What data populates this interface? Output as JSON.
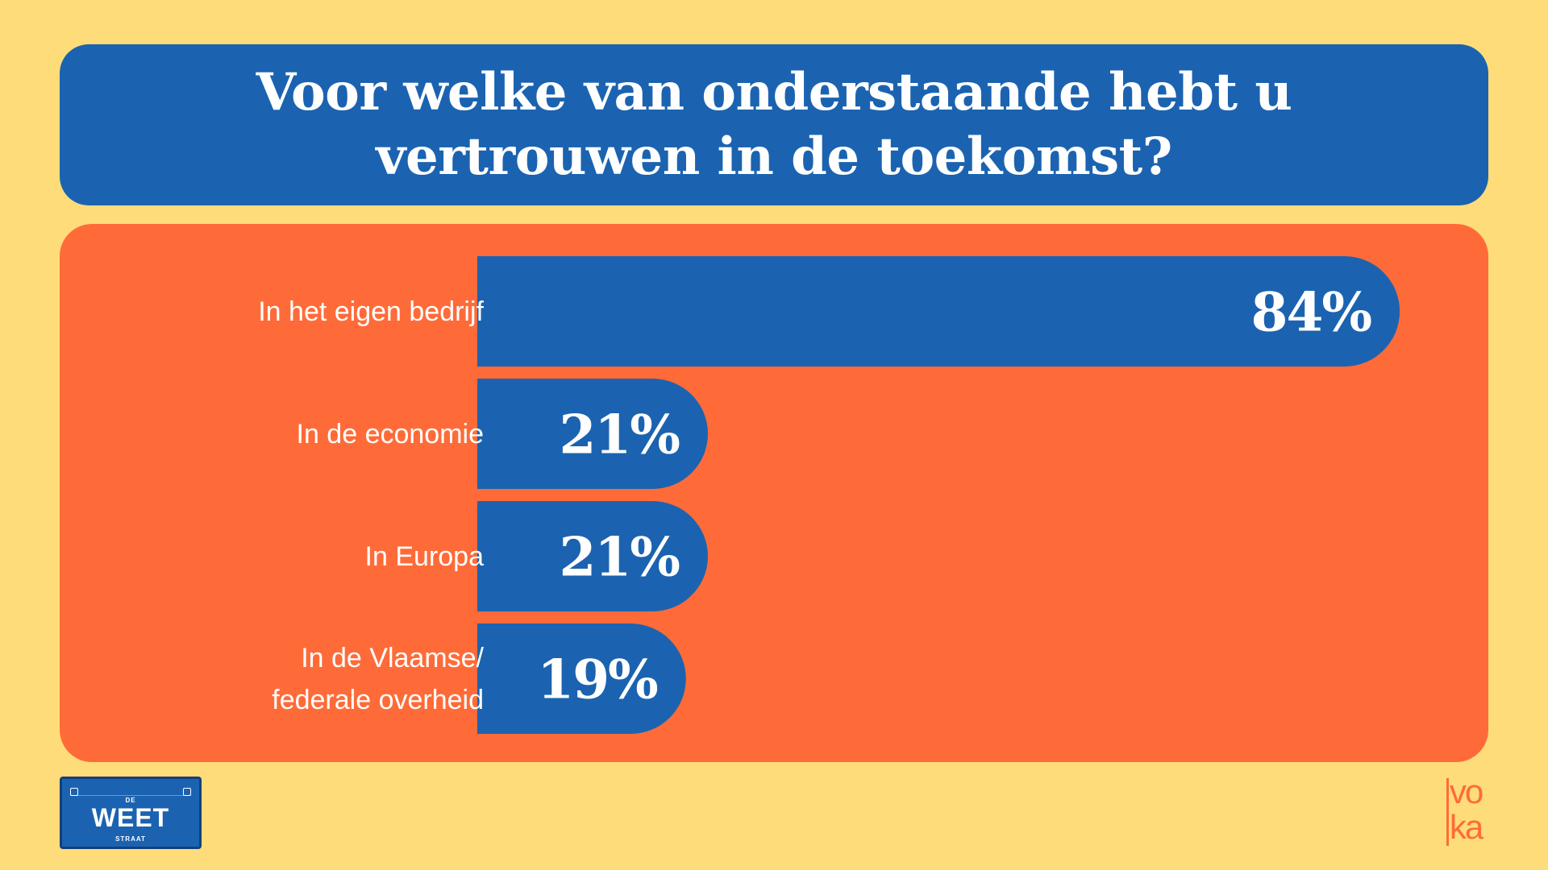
{
  "title": "Voor welke van onderstaande hebt u vertrouwen in de toekomst?",
  "chart_data": {
    "type": "bar",
    "orientation": "horizontal",
    "title": "Voor welke van onderstaande hebt u vertrouwen in de toekomst?",
    "categories": [
      "In het eigen bedrijf",
      "In de economie",
      "In Europa",
      "In de Vlaamse/\nfederale overheid"
    ],
    "values": [
      84,
      21,
      21,
      19
    ],
    "value_labels": [
      "84%",
      "21%",
      "21%",
      "19%"
    ],
    "unit": "%",
    "xlim": [
      0,
      100
    ],
    "grid": false,
    "legend": "none",
    "colors": {
      "bar": "#1B63B0",
      "panel": "#FF6B38",
      "background": "#FFDC7A",
      "text": "#FFFFFF"
    }
  },
  "footer": {
    "badge": {
      "top_text": "DE",
      "main_text": "WEET",
      "bottom_text": "STRAAT",
      "icon": "street-sign-icon"
    },
    "logo": {
      "line1": "vo",
      "line2": "ka",
      "icon": "voka-logo-icon"
    }
  }
}
